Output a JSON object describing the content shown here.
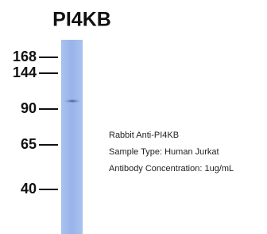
{
  "header": {
    "title": "PI4KB"
  },
  "markers": [
    168,
    144,
    90,
    65,
    40
  ],
  "notes": [
    "Rabbit Anti-PI4KB",
    "Sample Type: Human Jurkat",
    "Antibody Concentration: 1ug/mL"
  ]
}
